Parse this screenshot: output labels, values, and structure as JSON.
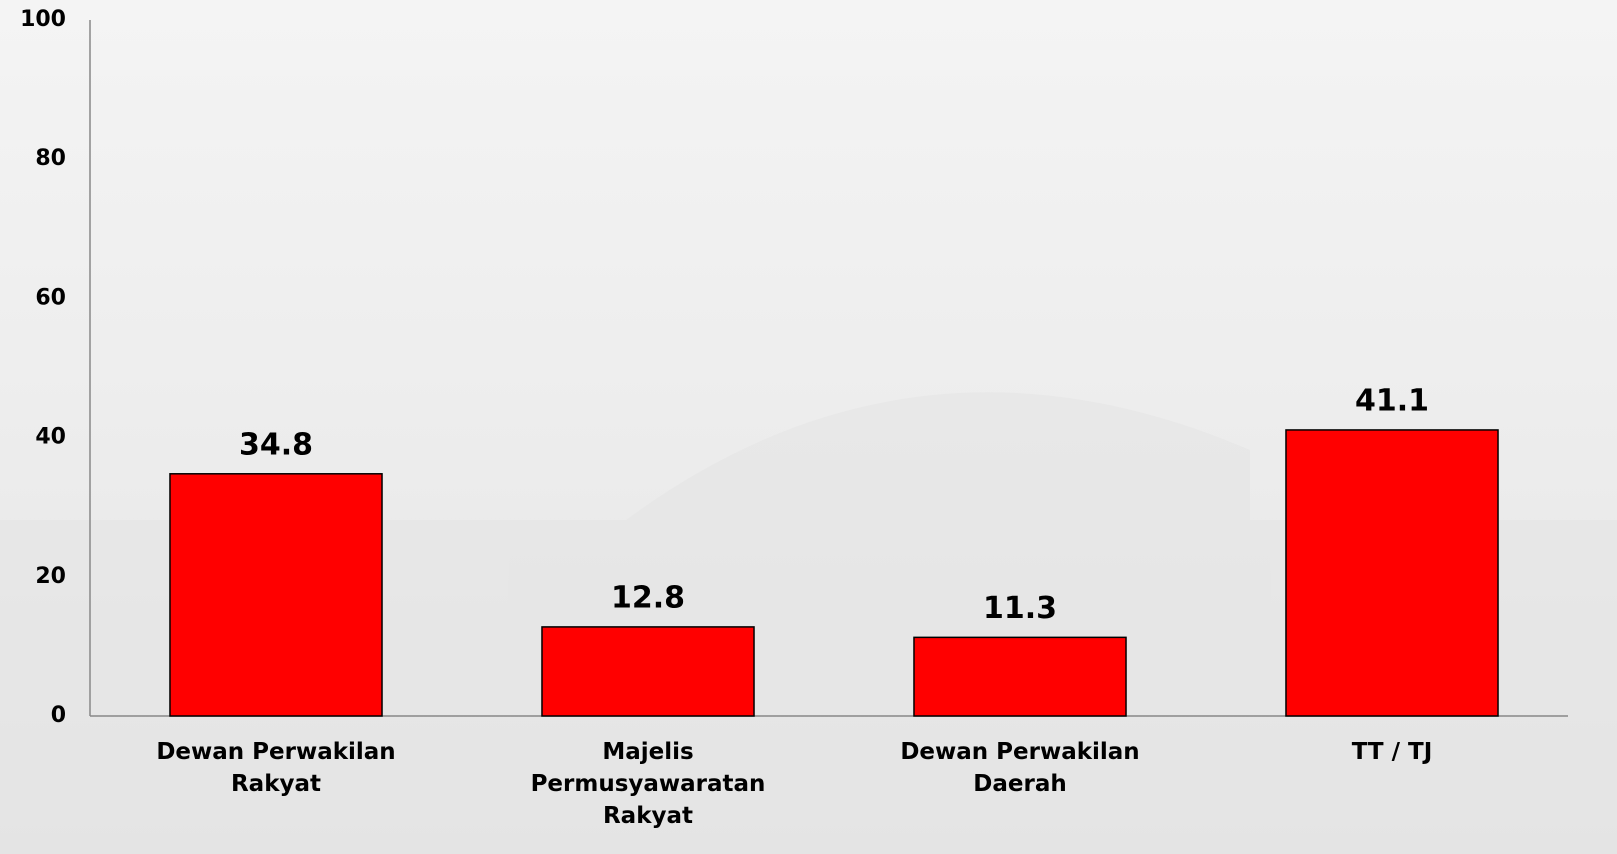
{
  "chart_data": {
    "type": "bar",
    "categories": [
      "Dewan Perwakilan Rakyat",
      "Majelis Permusyawaratan Rakyat",
      "Dewan Perwakilan Daerah",
      "TT / TJ"
    ],
    "values": [
      34.8,
      12.8,
      11.3,
      41.1
    ],
    "color": "#ff0000",
    "ylim": [
      0,
      100
    ],
    "yticks": [
      0,
      20,
      40,
      60,
      80,
      100
    ],
    "grid": false
  }
}
